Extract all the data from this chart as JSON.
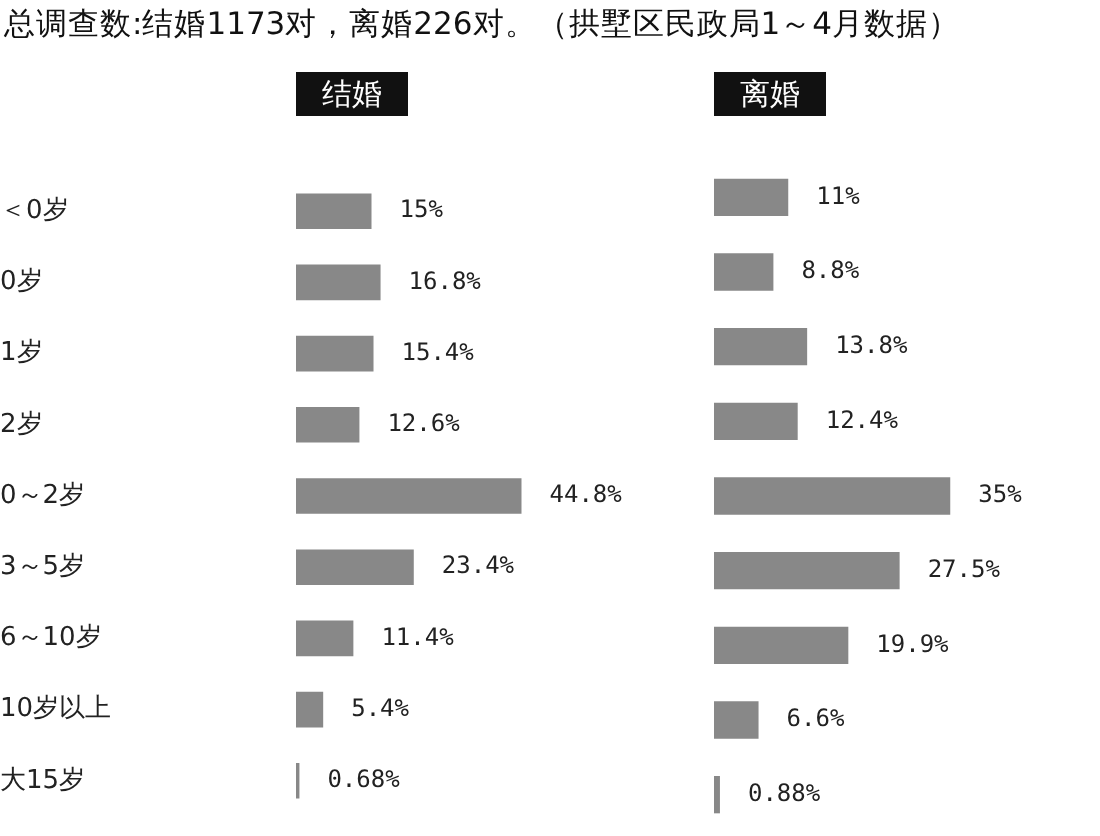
{
  "chart_data": [
    {
      "type": "bar",
      "orientation": "horizontal",
      "title": "结婚",
      "annotations": [
        "总调查数:结婚1173对，离婚226对。（拱墅区民政局1～4月数据）"
      ],
      "categories": [
        "＜0岁",
        "0岁",
        "1岁",
        "2岁",
        "0～2岁",
        "3～5岁",
        "6～10岁",
        "10岁以上",
        "大15岁"
      ],
      "values": [
        15,
        16.8,
        15.4,
        12.6,
        44.8,
        23.4,
        11.4,
        5.4,
        0.68
      ],
      "value_labels": [
        "15%",
        "16.8%",
        "15.4%",
        "12.6%",
        "44.8%",
        "23.4%",
        "11.4%",
        "5.4%",
        "0.68%"
      ],
      "color": "#888888",
      "grid": false,
      "legend": false,
      "tick_labels": "y"
    },
    {
      "type": "bar",
      "orientation": "horizontal",
      "title": "离婚",
      "categories": [
        null,
        null,
        null,
        null,
        null,
        null,
        null,
        null,
        null
      ],
      "values": [
        11,
        8.8,
        13.8,
        12.4,
        35,
        27.5,
        19.9,
        6.6,
        0.88
      ],
      "value_labels": [
        "11%",
        "8.8%",
        "13.8%",
        "12.4%",
        "35%",
        "27.5%",
        "19.9%",
        "6.6%",
        "0.88%"
      ],
      "color": "#888888",
      "grid": false,
      "legend": false,
      "tick_labels": false
    }
  ]
}
